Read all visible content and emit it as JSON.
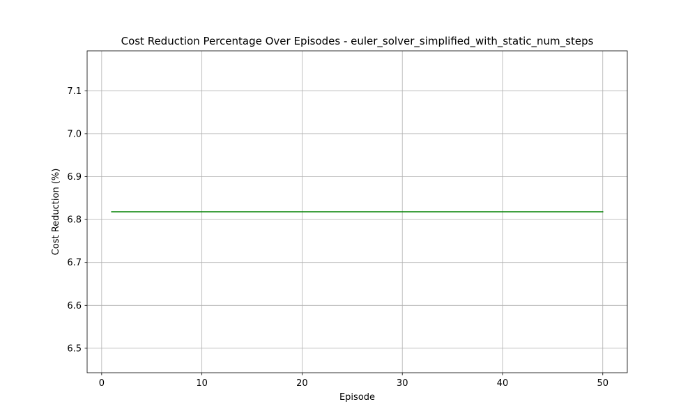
{
  "chart_data": {
    "type": "line",
    "title": "Cost Reduction Percentage Over Episodes - euler_solver_simplified_with_static_num_steps",
    "xlabel": "Episode",
    "ylabel": "Cost Reduction (%)",
    "xlim": [
      -1.45,
      52.45
    ],
    "ylim": [
      6.443,
      7.193
    ],
    "xticks": [
      0,
      10,
      20,
      30,
      40,
      50
    ],
    "xtick_labels": [
      "0",
      "10",
      "20",
      "30",
      "40",
      "50"
    ],
    "yticks": [
      6.5,
      6.6,
      6.7,
      6.8,
      6.9,
      7.0,
      7.1
    ],
    "ytick_labels": [
      "6.5",
      "6.6",
      "6.7",
      "6.8",
      "6.9",
      "7.0",
      "7.1"
    ],
    "grid": true,
    "series": [
      {
        "color": "#008000",
        "x": [
          1,
          2,
          3,
          4,
          5,
          6,
          7,
          8,
          9,
          10,
          11,
          12,
          13,
          14,
          15,
          16,
          17,
          18,
          19,
          20,
          21,
          22,
          23,
          24,
          25,
          26,
          27,
          28,
          29,
          30,
          31,
          32,
          33,
          34,
          35,
          36,
          37,
          38,
          39,
          40,
          41,
          42,
          43,
          44,
          45,
          46,
          47,
          48,
          49,
          50
        ],
        "y": [
          6.818,
          6.818,
          6.818,
          6.818,
          6.818,
          6.818,
          6.818,
          6.818,
          6.818,
          6.818,
          6.818,
          6.818,
          6.818,
          6.818,
          6.818,
          6.818,
          6.818,
          6.818,
          6.818,
          6.818,
          6.818,
          6.818,
          6.818,
          6.818,
          6.818,
          6.818,
          6.818,
          6.818,
          6.818,
          6.818,
          6.818,
          6.818,
          6.818,
          6.818,
          6.818,
          6.818,
          6.818,
          6.818,
          6.818,
          6.818,
          6.818,
          6.818,
          6.818,
          6.818,
          6.818,
          6.818,
          6.818,
          6.818,
          6.818,
          6.818
        ]
      }
    ],
    "colors": {
      "grid": "#b0b0b0",
      "axes": "#000000",
      "background": "#ffffff"
    }
  }
}
